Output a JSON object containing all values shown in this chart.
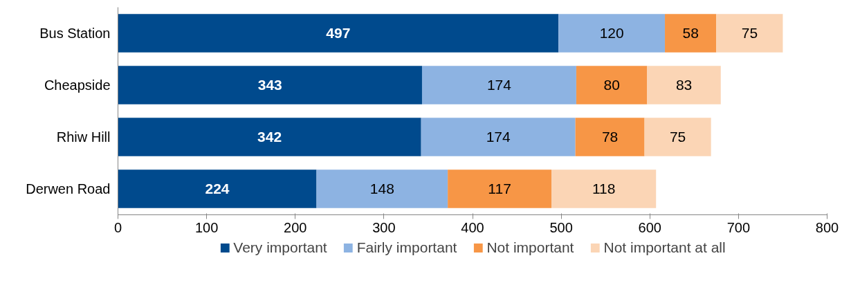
{
  "chart_data": {
    "type": "bar",
    "orientation": "horizontal",
    "stacked": true,
    "data_labels": true,
    "legend": "bottom",
    "grid": false,
    "categories": [
      "Bus Station",
      "Cheapside",
      "Rhiw Hill",
      "Derwen Road"
    ],
    "series": [
      {
        "name": "Very important",
        "color": "#004a8d",
        "values": [
          497,
          343,
          342,
          224
        ]
      },
      {
        "name": "Fairly important",
        "color": "#8db3e2",
        "values": [
          120,
          174,
          174,
          148
        ]
      },
      {
        "name": "Not important",
        "color": "#f79646",
        "values": [
          58,
          80,
          78,
          117
        ]
      },
      {
        "name": "Not important at all",
        "color": "#fbd5b5",
        "values": [
          75,
          83,
          75,
          118
        ]
      }
    ],
    "xlim": [
      0,
      800
    ],
    "xticks": [
      0,
      100,
      200,
      300,
      400,
      500,
      600,
      700,
      800
    ]
  }
}
